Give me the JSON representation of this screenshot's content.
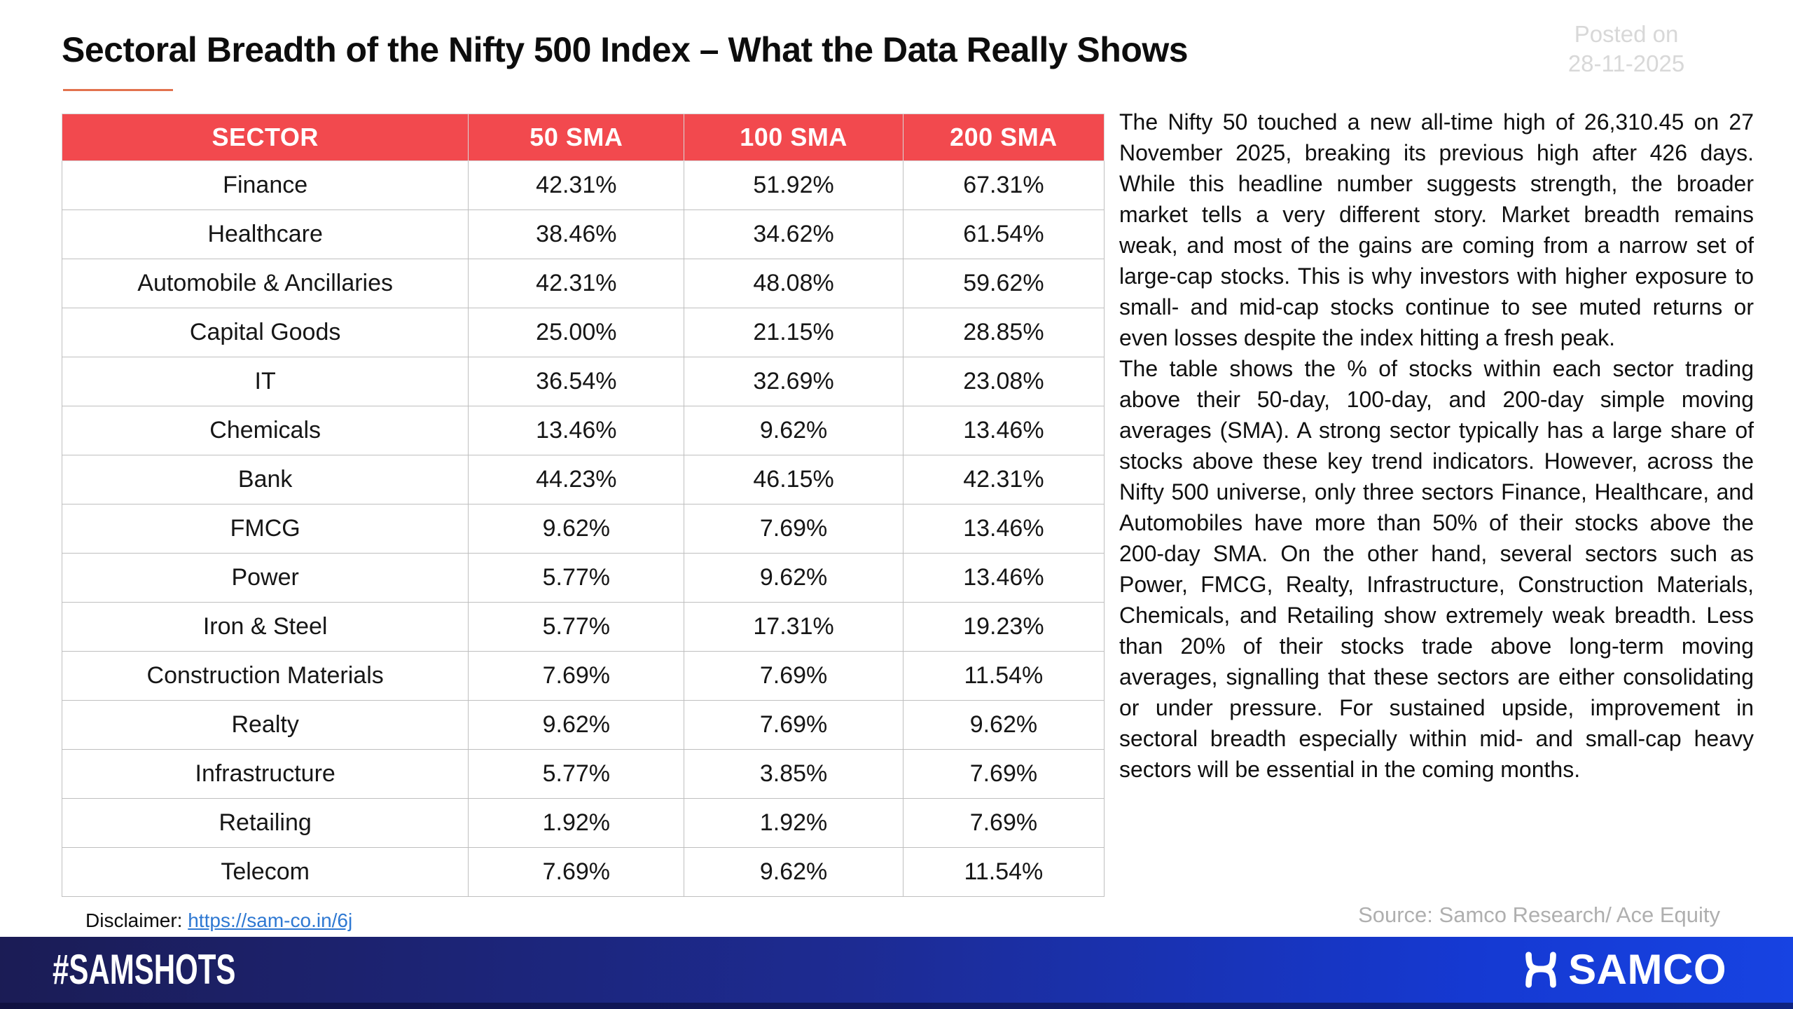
{
  "header": {
    "title": "Sectoral Breadth of the Nifty 500 Index – What the Data Really Shows",
    "posted_on_label": "Posted on",
    "posted_on_date": "28-11-2025"
  },
  "table": {
    "headers": [
      "SECTOR",
      "50 SMA",
      "100 SMA",
      "200 SMA"
    ],
    "rows": [
      {
        "sector": "Finance",
        "sma50": "42.31%",
        "sma100": "51.92%",
        "sma200": "67.31%"
      },
      {
        "sector": "Healthcare",
        "sma50": "38.46%",
        "sma100": "34.62%",
        "sma200": "61.54%"
      },
      {
        "sector": "Automobile & Ancillaries",
        "sma50": "42.31%",
        "sma100": "48.08%",
        "sma200": "59.62%"
      },
      {
        "sector": "Capital Goods",
        "sma50": "25.00%",
        "sma100": "21.15%",
        "sma200": "28.85%"
      },
      {
        "sector": "IT",
        "sma50": "36.54%",
        "sma100": "32.69%",
        "sma200": "23.08%"
      },
      {
        "sector": "Chemicals",
        "sma50": "13.46%",
        "sma100": "9.62%",
        "sma200": "13.46%"
      },
      {
        "sector": "Bank",
        "sma50": "44.23%",
        "sma100": "46.15%",
        "sma200": "42.31%"
      },
      {
        "sector": "FMCG",
        "sma50": "9.62%",
        "sma100": "7.69%",
        "sma200": "13.46%"
      },
      {
        "sector": "Power",
        "sma50": "5.77%",
        "sma100": "9.62%",
        "sma200": "13.46%"
      },
      {
        "sector": "Iron & Steel",
        "sma50": "5.77%",
        "sma100": "17.31%",
        "sma200": "19.23%"
      },
      {
        "sector": "Construction Materials",
        "sma50": "7.69%",
        "sma100": "7.69%",
        "sma200": "11.54%"
      },
      {
        "sector": "Realty",
        "sma50": "9.62%",
        "sma100": "7.69%",
        "sma200": "9.62%"
      },
      {
        "sector": "Infrastructure",
        "sma50": "5.77%",
        "sma100": "3.85%",
        "sma200": "7.69%"
      },
      {
        "sector": "Retailing",
        "sma50": "1.92%",
        "sma100": "1.92%",
        "sma200": "7.69%"
      },
      {
        "sector": "Telecom",
        "sma50": "7.69%",
        "sma100": "9.62%",
        "sma200": "11.54%"
      }
    ]
  },
  "commentary": {
    "paragraph1": "The Nifty 50 touched a new all-time high of 26,310.45 on 27 November 2025, breaking its previous high after 426 days. While this headline number suggests strength, the broader market tells a very different story. Market breadth remains weak, and most of the gains are coming from a narrow set of large-cap stocks. This is why investors with higher exposure to small- and mid-cap stocks continue to see muted returns or even losses despite the index hitting a fresh peak.",
    "paragraph2": "The table shows the % of stocks within each sector trading above their 50-day, 100-day, and 200-day simple moving averages (SMA). A strong sector typically has a large share of stocks above these key trend indicators. However, across the Nifty 500 universe, only three sectors Finance, Healthcare, and Automobiles have more than 50% of their stocks above the 200-day SMA. On the other hand, several sectors such as Power, FMCG, Realty, Infrastructure, Construction Materials, Chemicals, and Retailing show extremely weak breadth. Less than 20% of their stocks trade above long-term moving averages, signalling that these sectors are either consolidating or under pressure. For sustained upside, improvement in sectoral breadth especially within mid- and small-cap heavy sectors will be essential in the coming months.",
    "source": "Source: Samco Research/ Ace Equity"
  },
  "disclaimer": {
    "label": "Disclaimer: ",
    "link_text": "https://sam-co.in/6j",
    "link_href": "https://sam-co.in/6j"
  },
  "footer": {
    "hashtag": "#SAMSHOTS",
    "brand": "SAMCO"
  },
  "colors": {
    "table_header_bg": "#F2494E",
    "title_underline": "#E2724E",
    "link_blue": "#2E78D2",
    "muted_gray": "#D8D8D8",
    "source_gray": "#AFAFAF",
    "footer_dark": "#1B1C55",
    "footer_mid": "#1D2B93",
    "footer_bright": "#1539D2"
  }
}
